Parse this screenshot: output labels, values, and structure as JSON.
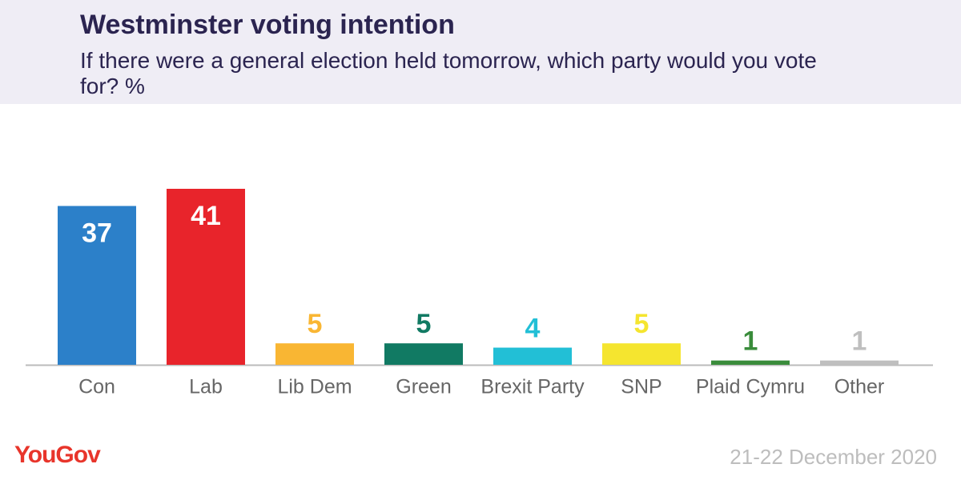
{
  "chart_data": {
    "type": "bar",
    "title": "Westminster voting intention",
    "subtitle": "If there were a general election held tomorrow, which party would you vote for? %",
    "categories": [
      "Con",
      "Lab",
      "Lib Dem",
      "Green",
      "Brexit Party",
      "SNP",
      "Plaid Cymru",
      "Other"
    ],
    "values": [
      37,
      41,
      5,
      5,
      4,
      5,
      1,
      1
    ],
    "colors": [
      "#2c80c9",
      "#e8242b",
      "#f9b633",
      "#117a63",
      "#22bfd6",
      "#f5e52f",
      "#3a8c3b",
      "#bfbfbf"
    ],
    "source": "YouGov",
    "date": "21-22 December 2020"
  }
}
